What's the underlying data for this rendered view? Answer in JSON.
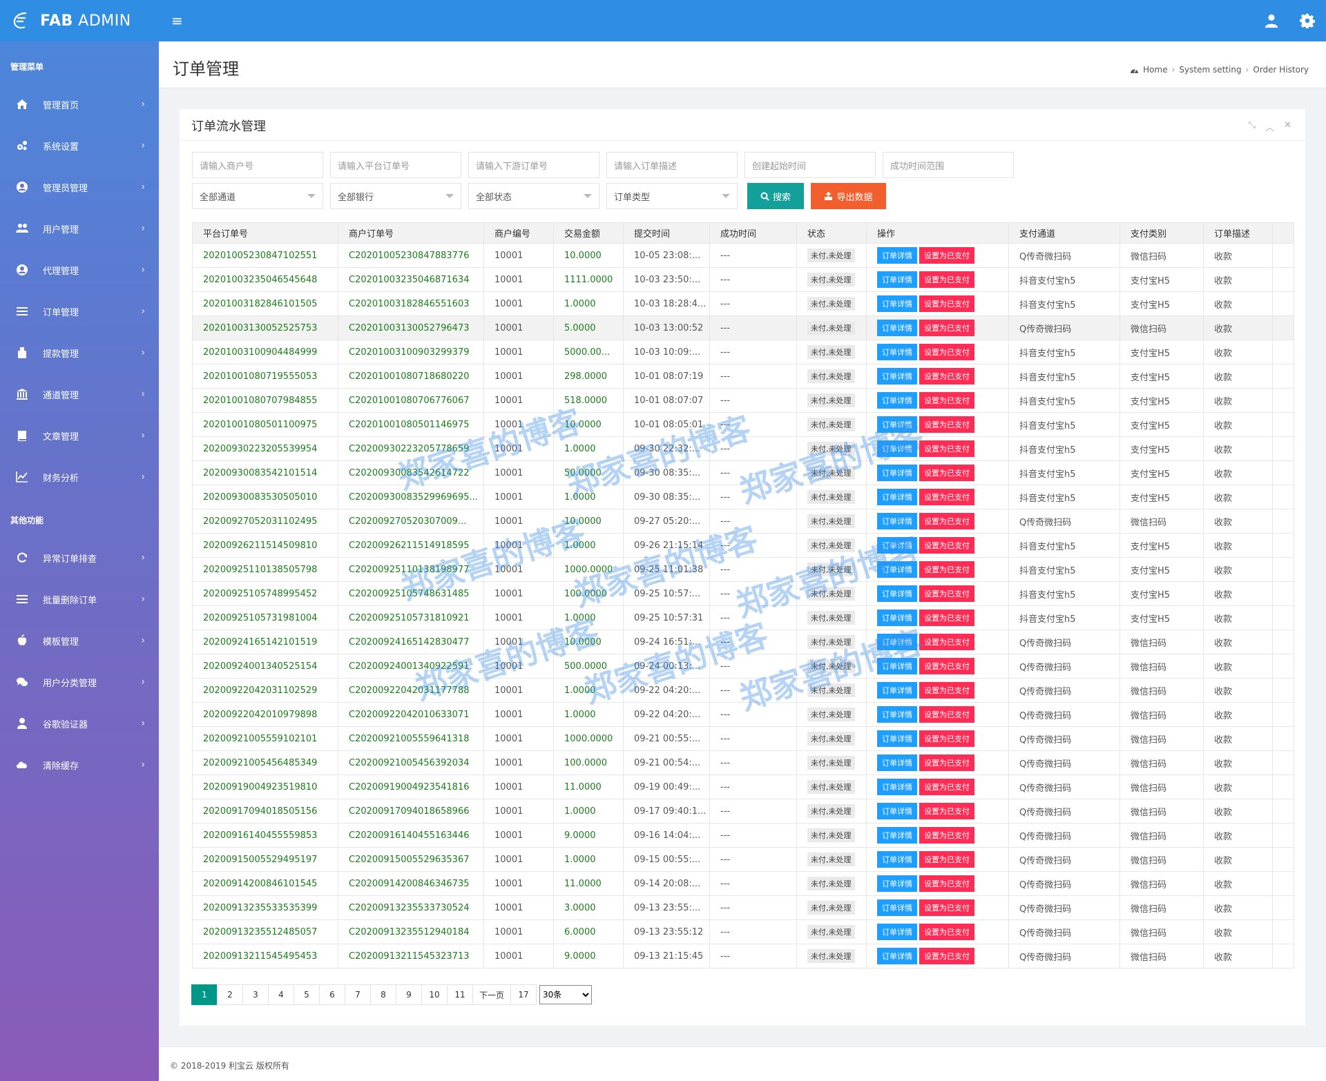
{
  "brand": {
    "name_bold": "FAB",
    "name_rest": " ADMIN"
  },
  "sidebar": {
    "section1": "管理菜单",
    "items1": [
      {
        "label": "管理首页",
        "icon": "home-icon"
      },
      {
        "label": "系统设置",
        "icon": "cogs-icon"
      },
      {
        "label": "管理员管理",
        "icon": "user-circle-icon"
      },
      {
        "label": "用户管理",
        "icon": "users-icon"
      },
      {
        "label": "代理管理",
        "icon": "user-circle-icon"
      },
      {
        "label": "订单管理",
        "icon": "list-icon"
      },
      {
        "label": "提款管理",
        "icon": "wallet-icon"
      },
      {
        "label": "通道管理",
        "icon": "bank-icon"
      },
      {
        "label": "文章管理",
        "icon": "book-icon"
      },
      {
        "label": "财务分析",
        "icon": "chart-line-icon"
      }
    ],
    "section2": "其他功能",
    "items2": [
      {
        "label": "异常订单排查",
        "icon": "refresh-icon"
      },
      {
        "label": "批量删除订单",
        "icon": "list-icon"
      },
      {
        "label": "模板管理",
        "icon": "apple-icon"
      },
      {
        "label": "用户分类管理",
        "icon": "chat-icon"
      },
      {
        "label": "谷歌验证器",
        "icon": "user-icon"
      },
      {
        "label": "清除缓存",
        "icon": "cloud-icon"
      }
    ],
    "chevron": "›"
  },
  "header": {
    "title": "订单管理",
    "breadcrumb": [
      "Home",
      "System setting",
      "Order History"
    ],
    "sep": "›"
  },
  "panel": {
    "title": "订单流水管理"
  },
  "filters": {
    "inputs": [
      "请输入商户号",
      "请输入平台订单号",
      "请输入下游订单号",
      "请输入订单描述",
      "创建起始时间",
      "成功时间范围"
    ],
    "selects": [
      "全部通道",
      "全部银行",
      "全部状态",
      "订单类型"
    ],
    "search_label": "搜索",
    "export_label": "导出数据"
  },
  "table": {
    "headers": [
      "平台订单号",
      "商户订单号",
      "商户编号",
      "交易金额",
      "提交时间",
      "成功时间",
      "状态",
      "操作",
      "支付通道",
      "支付类别",
      "订单描述"
    ],
    "status_label": "未付,未处理",
    "detail_label": "订单详情",
    "paid_label": "设置为已支付",
    "rows": [
      [
        "20201005230847102551",
        "C20201005230847883776",
        "10001",
        "10.0000",
        "10-05 23:08:...",
        "---",
        "Q传奇微扫码",
        "微信扫码",
        "收款"
      ],
      [
        "20201003235046545648",
        "C20201003235046871634",
        "10001",
        "1111.0000",
        "10-03 23:50:...",
        "---",
        "抖音支付宝h5",
        "支付宝H5",
        "收款"
      ],
      [
        "20201003182846101505",
        "C20201003182846551603",
        "10001",
        "1.0000",
        "10-03 18:28:4...",
        "---",
        "抖音支付宝h5",
        "支付宝H5",
        "收款"
      ],
      [
        "20201003130052525753",
        "C20201003130052796473",
        "10001",
        "5.0000",
        "10-03 13:00:52",
        "---",
        "Q传奇微扫码",
        "微信扫码",
        "收款"
      ],
      [
        "20201003100904484999",
        "C20201003100903299379",
        "10001",
        "5000.00...",
        "10-03 10:09:...",
        "---",
        "抖音支付宝h5",
        "支付宝H5",
        "收款"
      ],
      [
        "20201001080719555053",
        "C20201001080718680220",
        "10001",
        "298.0000",
        "10-01 08:07:19",
        "---",
        "抖音支付宝h5",
        "支付宝H5",
        "收款"
      ],
      [
        "20201001080707984855",
        "C20201001080706776067",
        "10001",
        "518.0000",
        "10-01 08:07:07",
        "---",
        "抖音支付宝h5",
        "支付宝H5",
        "收款"
      ],
      [
        "20201001080501100975",
        "C20201001080501146975",
        "10001",
        "10.0000",
        "10-01 08:05:01",
        "---",
        "抖音支付宝h5",
        "支付宝H5",
        "收款"
      ],
      [
        "20200930223205539954",
        "C20200930223205778659",
        "10001",
        "1.0000",
        "09-30 22:32:...",
        "---",
        "抖音支付宝h5",
        "支付宝H5",
        "收款"
      ],
      [
        "20200930083542101514",
        "C20200930083542614722",
        "10001",
        "50.0000",
        "09-30 08:35:...",
        "---",
        "抖音支付宝h5",
        "支付宝H5",
        "收款"
      ],
      [
        "20200930083530505010",
        "C20200930083529969695...",
        "10001",
        "1.0000",
        "09-30 08:35:...",
        "---",
        "抖音支付宝h5",
        "支付宝H5",
        "收款"
      ],
      [
        "20200927052031102495",
        "C20200927052030700​9...",
        "10001",
        "10.0000",
        "09-27 05:20:...",
        "---",
        "Q传奇微扫码",
        "微信扫码",
        "收款"
      ],
      [
        "20200926211514509810",
        "C20200926211514918595",
        "10001",
        "1.0000",
        "09-26 21:15:14",
        "---",
        "抖音支付宝h5",
        "支付宝H5",
        "收款"
      ],
      [
        "20200925110138505798",
        "C20200925110138198977",
        "10001",
        "1000.0000",
        "09-25 11:01:38",
        "---",
        "抖音支付宝h5",
        "支付宝H5",
        "收款"
      ],
      [
        "20200925105748995452",
        "C20200925105748631485",
        "10001",
        "100.0000",
        "09-25 10:57:...",
        "---",
        "抖音支付宝h5",
        "支付宝H5",
        "收款"
      ],
      [
        "20200925105731981004",
        "C20200925105731810921",
        "10001",
        "1.0000",
        "09-25 10:57:31",
        "---",
        "抖音支付宝h5",
        "支付宝H5",
        "收款"
      ],
      [
        "20200924165142101519",
        "C20200924165142830477",
        "10001",
        "10.0000",
        "09-24 16:51:...",
        "---",
        "Q传奇微扫码",
        "微信扫码",
        "收款"
      ],
      [
        "20200924001340525154",
        "C20200924001340922591",
        "10001",
        "500.0000",
        "09-24 00:13:...",
        "---",
        "Q传奇微扫码",
        "微信扫码",
        "收款"
      ],
      [
        "20200922042031102529",
        "C20200922042031177788",
        "10001",
        "1.0000",
        "09-22 04:20:...",
        "---",
        "Q传奇微扫码",
        "微信扫码",
        "收款"
      ],
      [
        "20200922042010979898",
        "C20200922042010633071",
        "10001",
        "1.0000",
        "09-22 04:20:...",
        "---",
        "Q传奇微扫码",
        "微信扫码",
        "收款"
      ],
      [
        "20200921005559102101",
        "C20200921005559641318",
        "10001",
        "1000.0000",
        "09-21 00:55:...",
        "---",
        "Q传奇微扫码",
        "微信扫码",
        "收款"
      ],
      [
        "20200921005456485349",
        "C20200921005456392034",
        "10001",
        "100.0000",
        "09-21 00:54:...",
        "---",
        "Q传奇微扫码",
        "微信扫码",
        "收款"
      ],
      [
        "20200919004923519810",
        "C20200919004923541816",
        "10001",
        "11.0000",
        "09-19 00:49:...",
        "---",
        "Q传奇微扫码",
        "微信扫码",
        "收款"
      ],
      [
        "20200917094018505156",
        "C20200917094018658966",
        "10001",
        "1.0000",
        "09-17 09:40:1...",
        "---",
        "Q传奇微扫码",
        "微信扫码",
        "收款"
      ],
      [
        "20200916140455559853",
        "C20200916140455163446",
        "10001",
        "9.0000",
        "09-16 14:04:...",
        "---",
        "Q传奇微扫码",
        "微信扫码",
        "收款"
      ],
      [
        "20200915005529495197",
        "C20200915005529635367",
        "10001",
        "1.0000",
        "09-15 00:55:...",
        "---",
        "Q传奇微扫码",
        "微信扫码",
        "收款"
      ],
      [
        "20200914200846101545",
        "C20200914200846346735",
        "10001",
        "11.0000",
        "09-14 20:08:...",
        "---",
        "Q传奇微扫码",
        "微信扫码",
        "收款"
      ],
      [
        "20200913235533535399",
        "C20200913235533730524",
        "10001",
        "3.0000",
        "09-13 23:55:...",
        "---",
        "Q传奇微扫码",
        "微信扫码",
        "收款"
      ],
      [
        "20200913235512485057",
        "C20200913235512940184",
        "10001",
        "6.0000",
        "09-13 23:55:12",
        "---",
        "Q传奇微扫码",
        "微信扫码",
        "收款"
      ],
      [
        "20200913211545495453",
        "C20200913211545323713",
        "10001",
        "9.0000",
        "09-13 21:15:45",
        "---",
        "Q传奇微扫码",
        "微信扫码",
        "收款"
      ]
    ]
  },
  "pager": {
    "pages": [
      "1",
      "2",
      "3",
      "4",
      "5",
      "6",
      "7",
      "8",
      "9",
      "10",
      "11"
    ],
    "current": "1",
    "next_label": "下一页",
    "total": "17",
    "page_size": "30条"
  },
  "footer": {
    "copyright": "© 2018-2019 利宝云 版权所有"
  },
  "watermark": {
    "text": "郑家喜的博客"
  },
  "colors": {
    "topbar": "#2f8ee4",
    "search": "#14a09a",
    "export": "#f25f2c",
    "detail": "#1e9fff",
    "paid": "#ff2d55",
    "page_active": "#009688"
  }
}
